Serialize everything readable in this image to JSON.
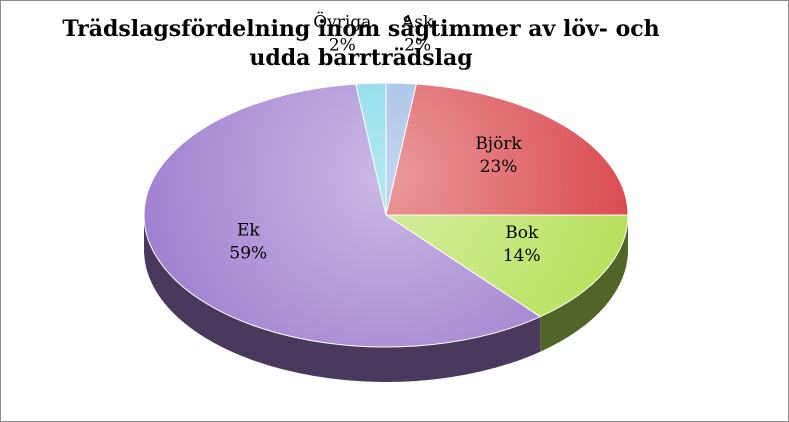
{
  "chart_data": {
    "type": "pie",
    "title": "Trädslagsfördelning inom sågtimmer av löv- och udda barrträdslag",
    "slices": [
      {
        "name": "Ask",
        "value": 2,
        "label": "2%",
        "color": "#8fb0e0"
      },
      {
        "name": "Björk",
        "value": 23,
        "label": "23%",
        "color": "#d9484d"
      },
      {
        "name": "Bok",
        "value": 14,
        "label": "14%",
        "color": "#b7e05a"
      },
      {
        "name": "Ek",
        "value": 59,
        "label": "59%",
        "color": "#9f7fcf"
      },
      {
        "name": "Övriga",
        "value": 2,
        "label": "2%",
        "color": "#6fd3e3"
      }
    ],
    "legend": "none",
    "style": "3d"
  }
}
